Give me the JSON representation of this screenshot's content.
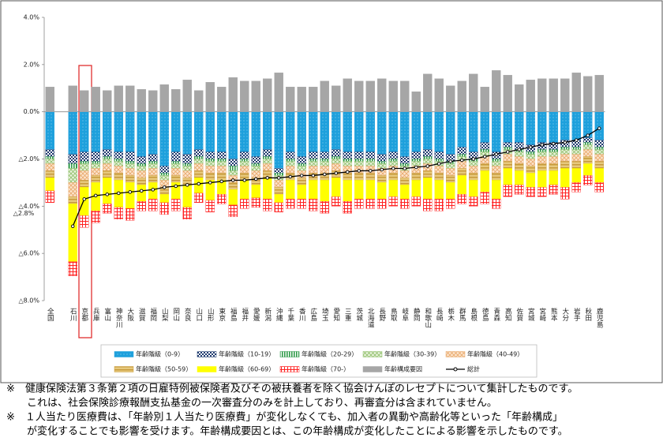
{
  "chart_data": {
    "type": "bar",
    "stacked": true,
    "categories": [
      "全国",
      "石川",
      "京都",
      "兵庫",
      "富山",
      "神奈川",
      "大阪",
      "滋賀",
      "福岡",
      "山梨",
      "岡山",
      "奈良",
      "山口",
      "山形",
      "東京",
      "福島",
      "福井",
      "愛媛",
      "新潟",
      "沖縄",
      "千葉",
      "香川",
      "広島",
      "埼玉",
      "愛知",
      "三重",
      "茨城",
      "北海道",
      "長野",
      "鳥取",
      "岐阜",
      "静岡",
      "和歌山",
      "長崎",
      "栃木",
      "群馬",
      "島根",
      "徳島",
      "青森",
      "高知",
      "佐賀",
      "宮城",
      "宮崎",
      "熊本",
      "大分",
      "岩手",
      "秋田",
      "鹿児島"
    ],
    "ylim": [
      -8,
      4
    ],
    "yticks": [
      {
        "value": 4,
        "label": "4.0%"
      },
      {
        "value": 2,
        "label": "2.0%"
      },
      {
        "value": 0,
        "label": "0.0%"
      },
      {
        "value": -2,
        "label": "△2.0%"
      },
      {
        "value": -4,
        "label": "△4.0%"
      },
      {
        "value": -6,
        "label": "△6.0%"
      },
      {
        "value": -8,
        "label": "△8.0%"
      }
    ],
    "annotation": {
      "text": "△2.8%",
      "value": -2.8
    },
    "series": [
      {
        "name": "年齢階級（0-9）",
        "type": "bar",
        "color": "#1ea0dc",
        "values": [
          -1.6,
          -1.8,
          -1.7,
          -1.7,
          -1.6,
          -1.7,
          -1.7,
          -1.9,
          -1.8,
          -2.3,
          -1.7,
          -1.8,
          -1.6,
          -1.7,
          -1.7,
          -2.0,
          -1.7,
          -1.9,
          -1.6,
          -2.4,
          -1.7,
          -1.9,
          -1.7,
          -1.7,
          -1.6,
          -1.7,
          -1.7,
          -1.7,
          -1.8,
          -1.7,
          -1.9,
          -1.7,
          -1.6,
          -1.7,
          -1.8,
          -1.5,
          -1.7,
          -1.3,
          -1.7,
          -1.3,
          -1.3,
          -1.4,
          -1.3,
          -1.3,
          -1.2,
          -1.2,
          -1.1,
          -1.2
        ]
      },
      {
        "name": "年齢階級（10-19）",
        "type": "bar",
        "color": "#1f3a6e",
        "values": [
          -0.3,
          -0.4,
          -0.4,
          -0.4,
          -0.3,
          -0.3,
          -0.4,
          -0.3,
          -0.3,
          -0.3,
          -0.4,
          -0.4,
          -0.3,
          -0.3,
          -0.3,
          -0.3,
          -0.3,
          -0.3,
          -0.3,
          -0.2,
          -0.3,
          -0.3,
          -0.3,
          -0.3,
          -0.3,
          -0.3,
          -0.3,
          -0.3,
          -0.3,
          -0.3,
          -0.3,
          -0.3,
          -0.3,
          -0.3,
          -0.3,
          -0.3,
          -0.3,
          -0.3,
          -0.3,
          -0.2,
          -0.3,
          -0.3,
          -0.3,
          -0.3,
          -0.3,
          -0.3,
          -0.2,
          -0.3
        ]
      },
      {
        "name": "年齢階級（20-29）",
        "type": "bar",
        "color": "#2e9a48",
        "values": [
          -0.1,
          -0.2,
          -0.1,
          -0.1,
          -0.1,
          -0.1,
          -0.1,
          -0.1,
          -0.1,
          -0.1,
          -0.1,
          -0.1,
          -0.1,
          -0.1,
          -0.1,
          -0.2,
          -0.1,
          -0.1,
          -0.1,
          -0.1,
          -0.1,
          -0.1,
          -0.1,
          -0.1,
          -0.1,
          -0.1,
          -0.1,
          -0.1,
          -0.1,
          -0.1,
          -0.1,
          -0.1,
          -0.1,
          -0.1,
          -0.1,
          -0.1,
          -0.1,
          -0.1,
          -0.1,
          -0.1,
          -0.1,
          -0.1,
          -0.1,
          -0.1,
          -0.1,
          -0.1,
          -0.1,
          -0.1
        ]
      },
      {
        "name": "年齢階級（30-39）",
        "type": "bar",
        "color": "#8fbf6a",
        "values": [
          -0.2,
          -0.6,
          -0.3,
          -0.2,
          -0.2,
          -0.2,
          -0.2,
          -0.2,
          -0.2,
          -0.2,
          -0.2,
          -0.2,
          -0.2,
          -0.2,
          -0.2,
          -0.2,
          -0.2,
          -0.2,
          -0.2,
          -0.2,
          -0.2,
          -0.2,
          -0.2,
          -0.2,
          -0.2,
          -0.2,
          -0.2,
          -0.2,
          -0.2,
          -0.2,
          -0.2,
          -0.2,
          -0.2,
          -0.2,
          -0.2,
          -0.2,
          -0.2,
          -0.2,
          -0.2,
          -0.2,
          -0.2,
          -0.2,
          -0.2,
          -0.2,
          -0.2,
          -0.2,
          -0.2,
          -0.2
        ]
      },
      {
        "name": "年齢階級（40-49）",
        "type": "bar",
        "color": "#e8a86a",
        "values": [
          -0.3,
          -0.6,
          -0.4,
          -0.3,
          -0.3,
          -0.3,
          -0.3,
          -0.3,
          -0.3,
          -0.3,
          -0.3,
          -0.3,
          -0.3,
          -0.3,
          -0.3,
          -0.3,
          -0.3,
          -0.3,
          -0.3,
          -0.3,
          -0.3,
          -0.3,
          -0.3,
          -0.3,
          -0.3,
          -0.3,
          -0.3,
          -0.3,
          -0.3,
          -0.3,
          -0.3,
          -0.3,
          -0.3,
          -0.3,
          -0.3,
          -0.3,
          -0.3,
          -0.3,
          -0.3,
          -0.3,
          -0.3,
          -0.3,
          -0.3,
          -0.3,
          -0.3,
          -0.3,
          -0.3,
          -0.3
        ]
      },
      {
        "name": "年齢階級（50-59）",
        "type": "bar",
        "color": "#c79a3c",
        "values": [
          -0.3,
          -0.3,
          -0.3,
          -0.3,
          -0.3,
          -0.3,
          -0.3,
          -0.3,
          -0.3,
          -0.3,
          -0.3,
          -0.3,
          -0.3,
          -0.3,
          -0.3,
          -0.3,
          -0.3,
          -0.3,
          -0.3,
          -0.3,
          -0.3,
          -0.3,
          -0.3,
          -0.3,
          -0.3,
          -0.3,
          -0.3,
          -0.3,
          -0.3,
          -0.3,
          -0.3,
          -0.3,
          -0.3,
          -0.3,
          -0.3,
          -0.3,
          -0.3,
          -0.3,
          -0.3,
          -0.3,
          -0.3,
          -0.3,
          -0.3,
          -0.3,
          -0.3,
          -0.3,
          -0.3,
          -0.3
        ]
      },
      {
        "name": "年齢階級（60-69）",
        "type": "bar",
        "color": "#ffff00",
        "values": [
          -0.55,
          -2.45,
          -1.2,
          -1.2,
          -1.1,
          -1.15,
          -1.1,
          -0.7,
          -0.7,
          -0.35,
          -0.7,
          -0.95,
          -0.65,
          -0.85,
          -0.6,
          -0.65,
          -0.8,
          -0.55,
          -0.9,
          -0.35,
          -0.8,
          -0.6,
          -0.8,
          -0.9,
          -0.8,
          -0.9,
          -0.8,
          -0.8,
          -0.7,
          -0.7,
          -0.6,
          -0.7,
          -0.9,
          -0.8,
          -0.7,
          -0.8,
          -0.7,
          -0.9,
          -0.8,
          -0.7,
          -0.6,
          -0.6,
          -0.7,
          -0.6,
          -0.8,
          -0.6,
          -0.5,
          -0.6
        ]
      },
      {
        "name": "年齢階級（70-）",
        "type": "bar",
        "color": "#ff2020",
        "values": [
          -0.5,
          -0.6,
          -0.5,
          -0.5,
          -0.4,
          -0.5,
          -0.5,
          -0.4,
          -0.5,
          -0.5,
          -0.5,
          -0.5,
          -0.4,
          -0.5,
          -0.4,
          -0.5,
          -0.4,
          -0.4,
          -0.5,
          -0.4,
          -0.4,
          -0.4,
          -0.5,
          -0.5,
          -0.4,
          -0.5,
          -0.4,
          -0.4,
          -0.4,
          -0.4,
          -0.4,
          -0.4,
          -0.5,
          -0.5,
          -0.4,
          -0.4,
          -0.4,
          -0.5,
          -0.4,
          -0.5,
          -0.4,
          -0.4,
          -0.4,
          -0.4,
          -0.5,
          -0.4,
          -0.4,
          -0.4
        ]
      },
      {
        "name": "年齢構成要因",
        "type": "bar",
        "color": "#a6a6a6",
        "values": [
          1.05,
          1.1,
          0.9,
          1.05,
          0.9,
          1.1,
          1.1,
          0.95,
          0.9,
          1.15,
          0.95,
          1.35,
          0.9,
          1.25,
          1.05,
          1.45,
          1.3,
          1.3,
          1.4,
          1.65,
          1.05,
          1.05,
          1.05,
          1.3,
          1.1,
          1.4,
          1.3,
          1.3,
          1.4,
          1.3,
          1.3,
          0.85,
          1.6,
          1.4,
          1.1,
          1.3,
          1.6,
          1.05,
          1.75,
          1.55,
          1.15,
          1.35,
          1.4,
          1.4,
          1.4,
          1.65,
          1.5,
          1.55
        ]
      },
      {
        "name": "総計",
        "type": "line",
        "color": "#000000",
        "values": [
          null,
          -4.85,
          -3.7,
          -3.55,
          -3.5,
          -3.45,
          -3.4,
          -3.35,
          -3.3,
          -3.2,
          -3.15,
          -3.1,
          -3.05,
          -3.0,
          -2.95,
          -2.9,
          -2.9,
          -2.85,
          -2.8,
          -2.8,
          -2.75,
          -2.7,
          -2.7,
          -2.65,
          -2.6,
          -2.55,
          -2.5,
          -2.5,
          -2.45,
          -2.4,
          -2.4,
          -2.35,
          -2.3,
          -2.2,
          -2.1,
          -2.05,
          -2.0,
          -1.9,
          -1.8,
          -1.7,
          -1.6,
          -1.5,
          -1.4,
          -1.35,
          -1.3,
          -1.2,
          -1.0,
          -0.7
        ]
      }
    ]
  },
  "notes": [
    "※　健康保険法第３条第２項の日雇特例被保険者及びその被扶養者を除く協会けんぽのレセプトについて集計したものです。",
    "　　これは、社会保険診療報酬支払基金の一次審査分のみを計上しており、再審査分は含まれていません。",
    "※　１人当たり医療費は、「年齢別１人当たり医療費」が変化しなくても、加入者の異動や高齢化等といった「年齢構成」",
    "　　が変化することでも影響を受けます。年齢構成要因とは、この年齢構成が変化したことによる影響を示したものです。"
  ]
}
